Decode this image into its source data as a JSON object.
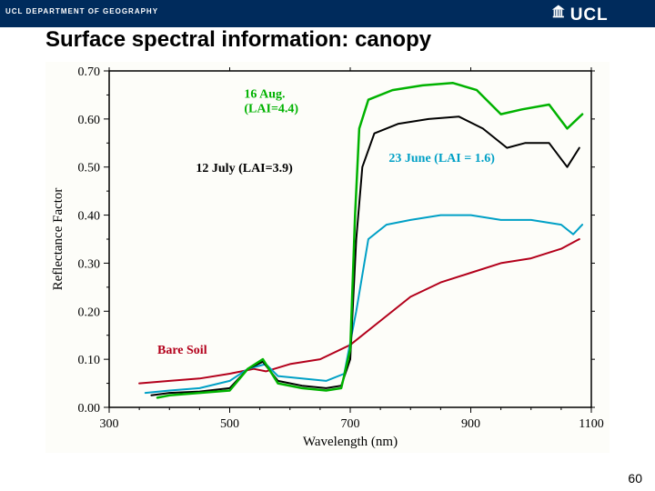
{
  "header": {
    "department": "UCL DEPARTMENT OF GEOGRAPHY",
    "logo_text": "UCL"
  },
  "title": "Surface spectral information: canopy",
  "page_number": "60",
  "chart": {
    "type": "line",
    "background_color": "#fdfdf9",
    "plot_border_color": "#000000",
    "xlabel": "Wavelength (nm)",
    "ylabel": "Reflectance Factor",
    "label_fontsize": 15,
    "tick_fontsize": 14,
    "xlim": [
      300,
      1100
    ],
    "ylim": [
      0.0,
      0.7
    ],
    "xticks": [
      300,
      500,
      700,
      900,
      1100
    ],
    "yticks": [
      0.0,
      0.1,
      0.2,
      0.3,
      0.4,
      0.5,
      0.6,
      0.7
    ],
    "ytick_labels": [
      "0.00",
      "0.10",
      "0.20",
      "0.30",
      "0.40",
      "0.50",
      "0.60",
      "0.70"
    ],
    "series": [
      {
        "name": "Bare Soil",
        "label": "Bare Soil",
        "color": "#b3001b",
        "line_width": 2,
        "label_pos": {
          "x": 0.1,
          "y": 0.84
        },
        "points": [
          [
            350,
            0.05
          ],
          [
            400,
            0.055
          ],
          [
            450,
            0.06
          ],
          [
            500,
            0.07
          ],
          [
            540,
            0.08
          ],
          [
            560,
            0.075
          ],
          [
            600,
            0.09
          ],
          [
            650,
            0.1
          ],
          [
            700,
            0.13
          ],
          [
            750,
            0.18
          ],
          [
            800,
            0.23
          ],
          [
            850,
            0.26
          ],
          [
            900,
            0.28
          ],
          [
            950,
            0.3
          ],
          [
            1000,
            0.31
          ],
          [
            1050,
            0.33
          ],
          [
            1080,
            0.35
          ]
        ]
      },
      {
        "name": "23 June",
        "label": "23 June (LAI = 1.6)",
        "color": "#00a0c6",
        "line_width": 2,
        "label_pos": {
          "x": 0.58,
          "y": 0.27
        },
        "points": [
          [
            360,
            0.03
          ],
          [
            400,
            0.035
          ],
          [
            450,
            0.04
          ],
          [
            500,
            0.055
          ],
          [
            530,
            0.08
          ],
          [
            560,
            0.09
          ],
          [
            580,
            0.065
          ],
          [
            620,
            0.06
          ],
          [
            660,
            0.055
          ],
          [
            690,
            0.07
          ],
          [
            710,
            0.2
          ],
          [
            730,
            0.35
          ],
          [
            760,
            0.38
          ],
          [
            800,
            0.39
          ],
          [
            850,
            0.4
          ],
          [
            900,
            0.4
          ],
          [
            950,
            0.39
          ],
          [
            1000,
            0.39
          ],
          [
            1050,
            0.38
          ],
          [
            1070,
            0.36
          ],
          [
            1085,
            0.38
          ]
        ]
      },
      {
        "name": "12 July",
        "label": "12 July (LAI=3.9)",
        "color": "#000000",
        "line_width": 2,
        "label_pos": {
          "x": 0.18,
          "y": 0.3
        },
        "points": [
          [
            370,
            0.025
          ],
          [
            400,
            0.03
          ],
          [
            450,
            0.033
          ],
          [
            500,
            0.04
          ],
          [
            530,
            0.08
          ],
          [
            555,
            0.095
          ],
          [
            580,
            0.055
          ],
          [
            620,
            0.045
          ],
          [
            660,
            0.04
          ],
          [
            685,
            0.045
          ],
          [
            700,
            0.1
          ],
          [
            710,
            0.35
          ],
          [
            720,
            0.5
          ],
          [
            740,
            0.57
          ],
          [
            780,
            0.59
          ],
          [
            830,
            0.6
          ],
          [
            880,
            0.605
          ],
          [
            920,
            0.58
          ],
          [
            960,
            0.54
          ],
          [
            990,
            0.55
          ],
          [
            1030,
            0.55
          ],
          [
            1060,
            0.5
          ],
          [
            1080,
            0.54
          ]
        ]
      },
      {
        "name": "16 Aug.",
        "label": "16 Aug.",
        "label2": "(LAI=4.4)",
        "color": "#00b200",
        "line_width": 2.5,
        "label_pos": {
          "x": 0.28,
          "y": 0.08
        },
        "points": [
          [
            380,
            0.02
          ],
          [
            400,
            0.025
          ],
          [
            450,
            0.03
          ],
          [
            500,
            0.035
          ],
          [
            530,
            0.08
          ],
          [
            555,
            0.1
          ],
          [
            580,
            0.05
          ],
          [
            620,
            0.04
          ],
          [
            660,
            0.035
          ],
          [
            685,
            0.04
          ],
          [
            700,
            0.12
          ],
          [
            708,
            0.4
          ],
          [
            715,
            0.58
          ],
          [
            730,
            0.64
          ],
          [
            770,
            0.66
          ],
          [
            820,
            0.67
          ],
          [
            870,
            0.675
          ],
          [
            910,
            0.66
          ],
          [
            950,
            0.61
          ],
          [
            985,
            0.62
          ],
          [
            1030,
            0.63
          ],
          [
            1060,
            0.58
          ],
          [
            1085,
            0.61
          ]
        ]
      }
    ]
  }
}
